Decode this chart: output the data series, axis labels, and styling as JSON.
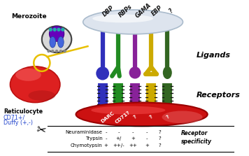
{
  "bg_color": "#ffffff",
  "ligand_labels": [
    "DBP",
    "RBPs",
    "GAMA",
    "EBP",
    "?"
  ],
  "ligand_colors": [
    "#3030bb",
    "#228B22",
    "#882299",
    "#ccaa00",
    "#336622"
  ],
  "receptor_labels": [
    "DARC",
    "CD71?",
    "?",
    "?",
    "?"
  ],
  "enzyme_rows": [
    [
      "Neuraminidase",
      "-",
      "-",
      "-",
      "-",
      "?"
    ],
    [
      "Trypsin",
      "-",
      "+/",
      "+",
      "-",
      "?"
    ],
    [
      "Chymotypsin",
      "+",
      "++/-",
      "++",
      "+",
      "?"
    ]
  ],
  "section_labels": [
    "Ligands",
    "Receptors",
    "Receptor\nspecificity"
  ],
  "merozoite_label": "Merozoite",
  "reticulocyte_label": "Reticulocyte",
  "rbc_sublabel1": "CD71+/",
  "rbc_sublabel2": "Duffy (+,-)"
}
